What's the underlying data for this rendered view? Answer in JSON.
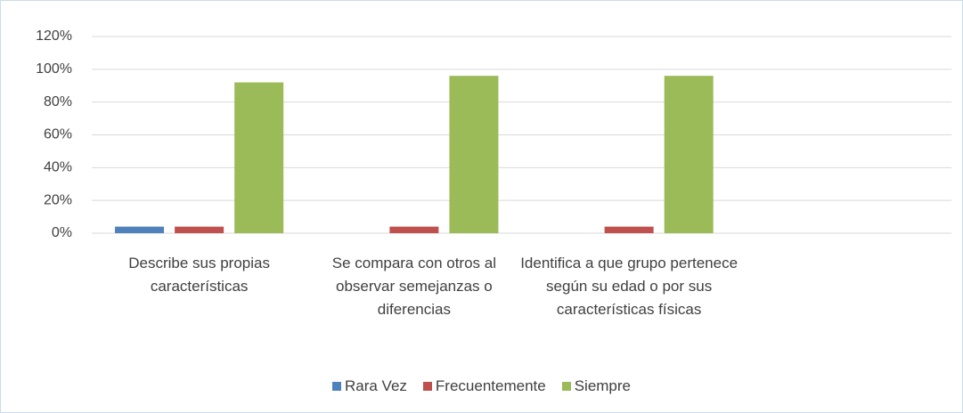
{
  "chart_data": {
    "type": "bar",
    "categories": [
      "Describe sus propias características",
      "Se compara con otros al observar semejanzas o diferencias",
      "Identifica a que grupo pertenece según su edad o por sus características físicas",
      null
    ],
    "series": [
      {
        "name": "Rara Vez",
        "color": "#4f81bd",
        "values": [
          4,
          0,
          0,
          null
        ]
      },
      {
        "name": "Frecuentemente",
        "color": "#c0504d",
        "values": [
          4,
          4,
          4,
          null
        ]
      },
      {
        "name": "Siempre",
        "color": "#9bbb59",
        "values": [
          92,
          96,
          96,
          null
        ]
      }
    ],
    "ylim": [
      0,
      120
    ],
    "yticks": [
      {
        "value": 0,
        "label": "0%"
      },
      {
        "value": 20,
        "label": "20%"
      },
      {
        "value": 40,
        "label": "40%"
      },
      {
        "value": 60,
        "label": "60%"
      },
      {
        "value": 80,
        "label": "80%"
      },
      {
        "value": 100,
        "label": "100%"
      },
      {
        "value": 120,
        "label": "120%"
      }
    ],
    "grid": true,
    "legend": "bottom"
  }
}
